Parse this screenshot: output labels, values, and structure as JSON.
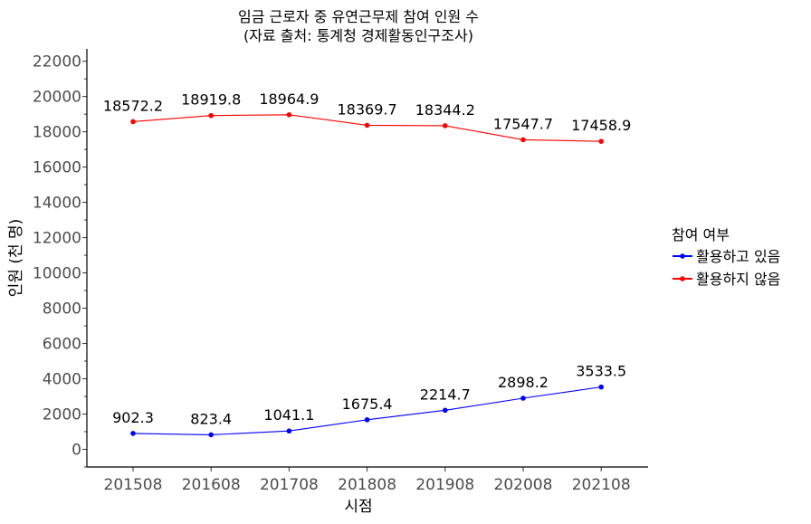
{
  "chart_data": {
    "type": "line",
    "title": "임금 근로자 중 유연근무제 참여 인원 수",
    "subtitle": "(자료 출처: 통계청 경제활동인구조사)",
    "xlabel": "시점",
    "ylabel": "인원 (천 명)",
    "categories": [
      "201508",
      "201608",
      "201708",
      "201808",
      "201908",
      "202008",
      "202108"
    ],
    "ylim": [
      -1000,
      22700
    ],
    "yticks": [
      0,
      2000,
      4000,
      6000,
      8000,
      10000,
      12000,
      14000,
      16000,
      18000,
      20000,
      22000
    ],
    "grid": false,
    "legend_position": "right",
    "legend_title": "참여 여부",
    "series": [
      {
        "name": "활용하고 있음",
        "color": "#0000ff",
        "values": [
          902.3,
          823.4,
          1041.1,
          1675.4,
          2214.7,
          2898.2,
          3533.5
        ]
      },
      {
        "name": "활용하지 않음",
        "color": "#ff0000",
        "values": [
          18572.2,
          18919.8,
          18964.9,
          18369.7,
          18344.2,
          17547.7,
          17458.9
        ]
      }
    ]
  }
}
